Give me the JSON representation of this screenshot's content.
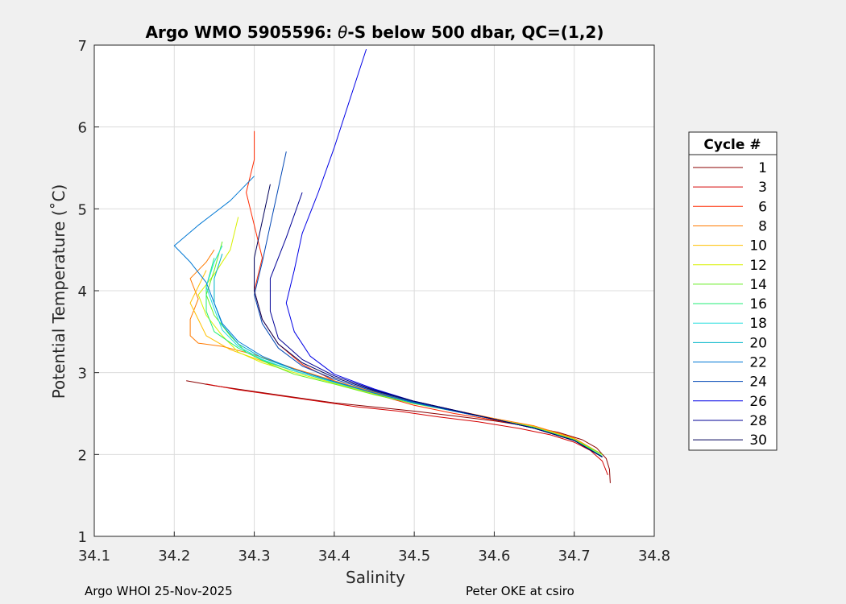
{
  "chart_data": {
    "type": "line",
    "title": "Argo WMO 5905596: θ-S below 500 dbar,  QC=(1,2)",
    "title_prefix": "Argo WMO 5905596: ",
    "title_theta": "θ",
    "title_suffix": "-S below 500 dbar,  QC=(1,2)",
    "xlabel": "Salinity",
    "ylabel": "Potential Temperature (˚C)",
    "xlim": [
      34.1,
      34.8
    ],
    "ylim": [
      1,
      7
    ],
    "xticks": [
      34.1,
      34.2,
      34.3,
      34.4,
      34.5,
      34.6,
      34.7,
      34.8
    ],
    "xtick_labels": [
      "34.1",
      "34.2",
      "34.3",
      "34.4",
      "34.5",
      "34.6",
      "34.7",
      "34.8"
    ],
    "yticks": [
      1,
      2,
      3,
      4,
      5,
      6,
      7
    ],
    "ytick_labels": [
      "1",
      "2",
      "3",
      "4",
      "5",
      "6",
      "7"
    ],
    "grid": true,
    "legend": {
      "title": "Cycle #",
      "placement": "right",
      "entries": [
        "1",
        "3",
        "6",
        "8",
        "10",
        "12",
        "14",
        "16",
        "18",
        "20",
        "22",
        "24",
        "26",
        "28",
        "30"
      ]
    },
    "series": [
      {
        "name": "1",
        "color": "#8b0000",
        "x": [
          34.745,
          34.744,
          34.74,
          34.728,
          34.71,
          34.68,
          34.64,
          34.6,
          34.55,
          34.5,
          34.45,
          34.4,
          34.35,
          34.3,
          34.25,
          34.215
        ],
        "y": [
          1.65,
          1.82,
          1.95,
          2.08,
          2.18,
          2.27,
          2.35,
          2.41,
          2.47,
          2.53,
          2.58,
          2.63,
          2.7,
          2.77,
          2.84,
          2.9
        ]
      },
      {
        "name": "3",
        "color": "#d40000",
        "x": [
          34.742,
          34.735,
          34.72,
          34.7,
          34.67,
          34.63,
          34.58,
          34.53,
          34.48,
          34.43,
          34.38,
          34.33,
          34.28,
          34.24
        ],
        "y": [
          1.75,
          1.92,
          2.05,
          2.15,
          2.24,
          2.32,
          2.4,
          2.46,
          2.53,
          2.58,
          2.65,
          2.72,
          2.79,
          2.86
        ]
      },
      {
        "name": "6",
        "color": "#ff2a00",
        "x": [
          34.735,
          34.7,
          34.65,
          34.6,
          34.55,
          34.5,
          34.45,
          34.4,
          34.36,
          34.33,
          34.31,
          34.3,
          34.31,
          34.3,
          34.29,
          34.3,
          34.3
        ],
        "y": [
          2.0,
          2.18,
          2.33,
          2.42,
          2.5,
          2.6,
          2.74,
          2.9,
          3.1,
          3.35,
          3.65,
          4.0,
          4.4,
          4.8,
          5.2,
          5.6,
          5.95
        ]
      },
      {
        "name": "8",
        "color": "#ff7a00",
        "x": [
          34.735,
          34.7,
          34.65,
          34.6,
          34.55,
          34.5,
          34.45,
          34.4,
          34.35,
          34.3,
          34.26,
          34.23,
          34.22,
          34.22,
          34.23,
          34.22,
          34.24,
          34.25
        ],
        "y": [
          2.0,
          2.2,
          2.35,
          2.44,
          2.54,
          2.64,
          2.76,
          2.9,
          3.05,
          3.22,
          3.32,
          3.36,
          3.45,
          3.65,
          3.9,
          4.15,
          4.35,
          4.5
        ]
      },
      {
        "name": "10",
        "color": "#ffc000",
        "x": [
          34.735,
          34.7,
          34.65,
          34.6,
          34.55,
          34.5,
          34.45,
          34.4,
          34.35,
          34.31,
          34.27,
          34.24,
          34.23,
          34.22,
          34.23,
          34.24
        ],
        "y": [
          2.0,
          2.19,
          2.34,
          2.43,
          2.53,
          2.63,
          2.75,
          2.88,
          3.02,
          3.14,
          3.28,
          3.45,
          3.65,
          3.85,
          4.05,
          4.25
        ]
      },
      {
        "name": "12",
        "color": "#d8f000",
        "x": [
          34.735,
          34.7,
          34.65,
          34.6,
          34.55,
          34.5,
          34.45,
          34.4,
          34.35,
          34.31,
          34.28,
          34.26,
          34.24,
          34.23,
          34.25,
          34.27,
          34.28
        ],
        "y": [
          2.0,
          2.18,
          2.33,
          2.43,
          2.53,
          2.63,
          2.74,
          2.87,
          3.0,
          3.12,
          3.25,
          3.45,
          3.7,
          3.95,
          4.2,
          4.5,
          4.9
        ]
      },
      {
        "name": "14",
        "color": "#66ee22",
        "x": [
          34.735,
          34.7,
          34.65,
          34.6,
          34.55,
          34.5,
          34.45,
          34.4,
          34.35,
          34.32,
          34.29,
          34.27,
          34.25,
          34.24,
          34.25,
          34.26
        ],
        "y": [
          2.0,
          2.18,
          2.33,
          2.43,
          2.53,
          2.62,
          2.73,
          2.86,
          2.98,
          3.1,
          3.25,
          3.45,
          3.7,
          3.95,
          4.25,
          4.6
        ]
      },
      {
        "name": "16",
        "color": "#22ee77",
        "x": [
          34.735,
          34.7,
          34.65,
          34.6,
          34.55,
          34.5,
          34.45,
          34.4,
          34.35,
          34.31,
          34.28,
          34.25,
          34.24,
          34.24,
          34.25
        ],
        "y": [
          1.98,
          2.18,
          2.33,
          2.43,
          2.53,
          2.63,
          2.75,
          2.88,
          3.02,
          3.15,
          3.3,
          3.5,
          3.75,
          4.05,
          4.4
        ]
      },
      {
        "name": "18",
        "color": "#22dddd",
        "x": [
          34.735,
          34.7,
          34.65,
          34.6,
          34.55,
          34.5,
          34.45,
          34.4,
          34.35,
          34.31,
          34.28,
          34.26,
          34.25,
          34.24,
          34.25,
          34.26
        ],
        "y": [
          1.97,
          2.17,
          2.32,
          2.43,
          2.53,
          2.63,
          2.75,
          2.88,
          3.02,
          3.16,
          3.32,
          3.52,
          3.78,
          4.05,
          4.35,
          4.55
        ]
      },
      {
        "name": "20",
        "color": "#00b4c8",
        "x": [
          34.735,
          34.7,
          34.65,
          34.6,
          34.55,
          34.5,
          34.45,
          34.4,
          34.35,
          34.31,
          34.28,
          34.26,
          34.25,
          34.25,
          34.26
        ],
        "y": [
          1.97,
          2.17,
          2.32,
          2.43,
          2.53,
          2.63,
          2.75,
          2.89,
          3.04,
          3.18,
          3.35,
          3.58,
          3.85,
          4.15,
          4.45
        ]
      },
      {
        "name": "22",
        "color": "#0078d4",
        "x": [
          34.735,
          34.7,
          34.65,
          34.6,
          34.55,
          34.5,
          34.45,
          34.4,
          34.35,
          34.31,
          34.28,
          34.26,
          34.25,
          34.24,
          34.22,
          34.2,
          34.23,
          34.27,
          34.3
        ],
        "y": [
          1.97,
          2.17,
          2.32,
          2.43,
          2.53,
          2.63,
          2.75,
          2.89,
          3.04,
          3.2,
          3.38,
          3.6,
          3.85,
          4.1,
          4.35,
          4.55,
          4.8,
          5.1,
          5.4
        ]
      },
      {
        "name": "24",
        "color": "#0046b4",
        "x": [
          34.735,
          34.7,
          34.65,
          34.6,
          34.55,
          34.5,
          34.45,
          34.4,
          34.36,
          34.33,
          34.31,
          34.3,
          34.31,
          34.32,
          34.33,
          34.34
        ],
        "y": [
          1.97,
          2.17,
          2.32,
          2.43,
          2.53,
          2.64,
          2.77,
          2.92,
          3.08,
          3.3,
          3.6,
          3.95,
          4.35,
          4.8,
          5.25,
          5.7
        ]
      },
      {
        "name": "26",
        "color": "#0000e6",
        "x": [
          34.735,
          34.7,
          34.65,
          34.6,
          34.55,
          34.5,
          34.45,
          34.4,
          34.37,
          34.35,
          34.34,
          34.35,
          34.36,
          34.38,
          34.4,
          34.42,
          34.44
        ],
        "y": [
          1.97,
          2.17,
          2.32,
          2.43,
          2.54,
          2.65,
          2.8,
          2.98,
          3.2,
          3.5,
          3.85,
          4.25,
          4.7,
          5.2,
          5.75,
          6.35,
          6.95
        ]
      },
      {
        "name": "28",
        "color": "#000096",
        "x": [
          34.735,
          34.7,
          34.65,
          34.6,
          34.55,
          34.5,
          34.45,
          34.4,
          34.36,
          34.33,
          34.32,
          34.32,
          34.34,
          34.36
        ],
        "y": [
          1.97,
          2.17,
          2.32,
          2.43,
          2.54,
          2.65,
          2.79,
          2.96,
          3.16,
          3.42,
          3.75,
          4.15,
          4.65,
          5.2
        ]
      },
      {
        "name": "30",
        "color": "#00005a",
        "x": [
          34.735,
          34.7,
          34.65,
          34.6,
          34.55,
          34.5,
          34.45,
          34.4,
          34.36,
          34.33,
          34.31,
          34.3,
          34.3,
          34.31,
          34.32
        ],
        "y": [
          1.97,
          2.17,
          2.32,
          2.43,
          2.54,
          2.65,
          2.78,
          2.94,
          3.12,
          3.35,
          3.65,
          4.0,
          4.4,
          4.85,
          5.3
        ]
      }
    ]
  },
  "footer": {
    "left": "Argo WHOI 25-Nov-2025",
    "right": "Peter OKE at csiro"
  }
}
